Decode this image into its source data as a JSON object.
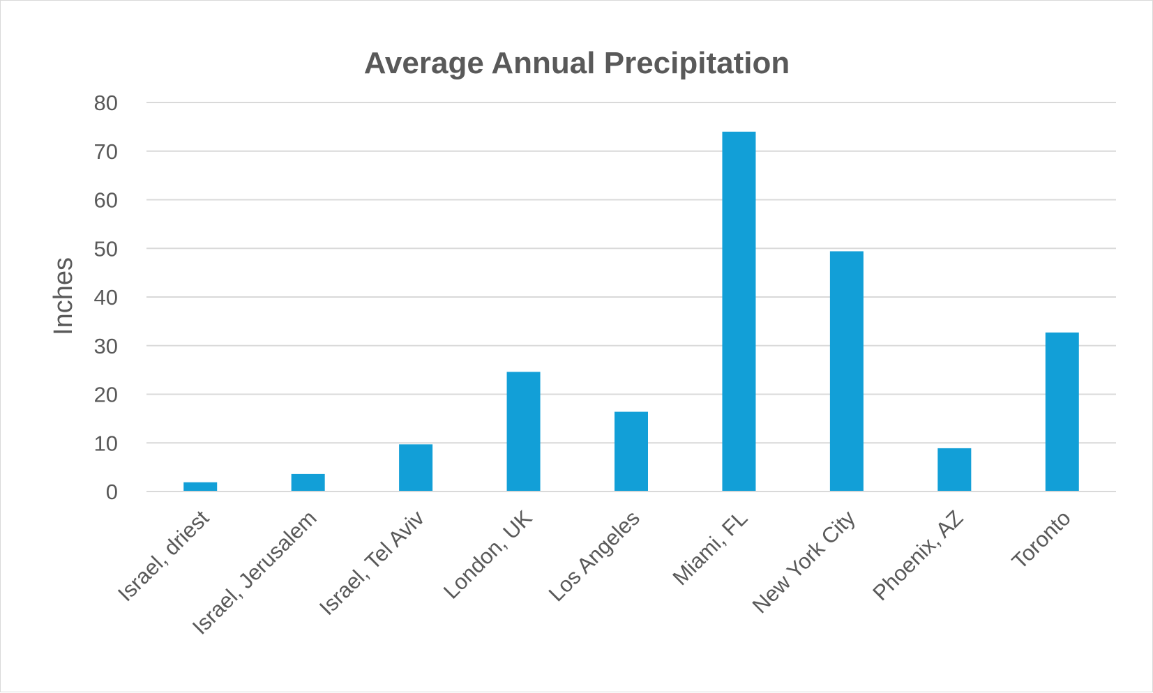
{
  "chart_data": {
    "type": "bar",
    "title": "Average Annual Precipitation",
    "xlabel": "",
    "ylabel": "Inches",
    "ylim": [
      0,
      80
    ],
    "yticks": [
      0,
      10,
      20,
      30,
      40,
      50,
      60,
      70,
      80
    ],
    "grid": true,
    "legend": "none",
    "categories": [
      "Israel, driest",
      "Israel, Jerusalem",
      "Israel, Tel Aviv",
      "London, UK",
      "Los Angeles",
      "Miami, FL",
      "New York City",
      "Phoenix, AZ",
      "Toronto"
    ],
    "values": [
      1.9,
      3.6,
      9.7,
      24.6,
      16.4,
      74.0,
      49.4,
      8.9,
      32.7
    ],
    "colors": {
      "bar": "#129fd7",
      "grid": "#d9d9d9",
      "text": "#595959"
    }
  }
}
